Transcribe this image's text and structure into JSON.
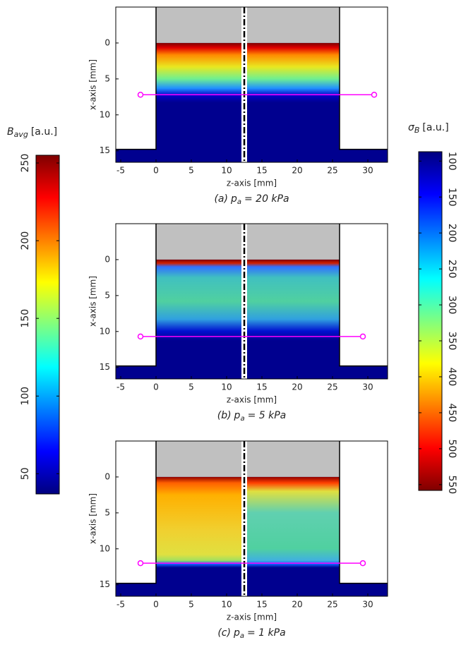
{
  "chart_data": [
    {
      "type": "heatmap",
      "xlabel": "z-axis [mm]",
      "ylabel": "x-axis [mm]",
      "xlim": [
        -5.7,
        32.8
      ],
      "ylim": [
        -5,
        16.6
      ],
      "y_inverted": true,
      "xticks": [
        -5,
        0,
        5,
        10,
        15,
        20,
        25,
        30
      ],
      "yticks": [
        0,
        5,
        10,
        15
      ],
      "caption": {
        "label": "(a)",
        "symbol": "p",
        "sub": "a",
        "value": "= 20 kPa"
      },
      "wall_z": [
        0,
        26
      ],
      "wall_depth": 14.8,
      "divider_z": 12.5,
      "profile": {
        "x": [
          -2.2,
          30.9
        ],
        "values": [
          7.2,
          7.2
        ],
        "color": "#ff00ff"
      }
    },
    {
      "type": "heatmap",
      "xlabel": "z-axis [mm]",
      "ylabel": "x-axis [mm]",
      "xlim": [
        -5.7,
        32.8
      ],
      "ylim": [
        -5,
        16.6
      ],
      "y_inverted": true,
      "xticks": [
        -5,
        0,
        5,
        10,
        15,
        20,
        25,
        30
      ],
      "yticks": [
        0,
        5,
        10,
        15
      ],
      "caption": {
        "label": "(b)",
        "symbol": "p",
        "sub": "a",
        "value": "= 5 kPa"
      },
      "wall_z": [
        0,
        26
      ],
      "wall_depth": 14.8,
      "divider_z": 12.5,
      "profile": {
        "x": [
          -2.2,
          29.3
        ],
        "values": [
          10.7,
          10.7
        ],
        "color": "#ff00ff"
      }
    },
    {
      "type": "heatmap",
      "xlabel": "z-axis [mm]",
      "ylabel": "x-axis [mm]",
      "xlim": [
        -5.7,
        32.8
      ],
      "ylim": [
        -5,
        16.6
      ],
      "y_inverted": true,
      "xticks": [
        -5,
        0,
        5,
        10,
        15,
        20,
        25,
        30
      ],
      "yticks": [
        0,
        5,
        10,
        15
      ],
      "caption": {
        "label": "(c)",
        "symbol": "p",
        "sub": "a",
        "value": "= 1 kPa"
      },
      "wall_z": [
        0,
        26
      ],
      "wall_depth": 14.8,
      "divider_z": 12.5,
      "profile": {
        "x": [
          -2.2,
          29.3
        ],
        "values": [
          12.0,
          12.0
        ],
        "color": "#ff00ff"
      }
    },
    {
      "type": "colorbar",
      "label": {
        "symbol": "B",
        "sub": "avg",
        "unit": "[a.u.]"
      },
      "lim": [
        37,
        255
      ],
      "ticks": [
        50,
        100,
        150,
        200,
        250
      ],
      "colormap": "jet",
      "reversed": false
    },
    {
      "type": "colorbar",
      "label": {
        "symbol": "σ",
        "sub": "B",
        "unit": "[a.u.]"
      },
      "lim": [
        87,
        558
      ],
      "ticks": [
        100,
        150,
        200,
        250,
        300,
        350,
        400,
        450,
        500,
        550
      ],
      "colormap": "jet",
      "reversed": true
    }
  ]
}
